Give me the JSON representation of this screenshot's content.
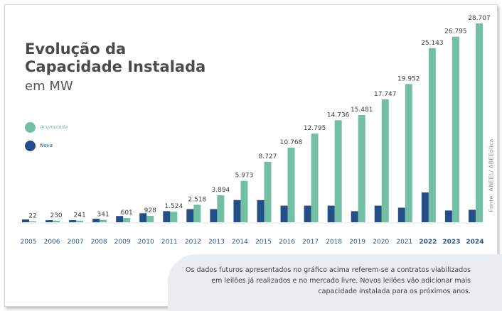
{
  "title_line1": "Evolução da",
  "title_line2": "Capacidade Instalada",
  "subtitle": "em MW",
  "source": "Fonte: ANEEL/ ABEEólica",
  "note": "Os dados futuros apresentados no gráfico acima referem-se a contratos viabilizados em leilões já realizados e no mercado livre. Novos leilões vão adicionar mais capacidade instalada para os próximos anos.",
  "colors": {
    "accumulated": "#72bfa4",
    "new": "#234e87",
    "year_label": "#2b5b8f",
    "value_label": "#3c3c3c"
  },
  "chart_data": {
    "type": "bar",
    "legend_position": "left",
    "categories": [
      "2005",
      "2006",
      "2007",
      "2008",
      "2009",
      "2010",
      "2011",
      "2012",
      "2013",
      "2014",
      "2015",
      "2016",
      "2017",
      "2018",
      "2019",
      "2020",
      "2021",
      "2022",
      "2023",
      "2024"
    ],
    "emphasized_categories": [
      "2022",
      "2023",
      "2024"
    ],
    "series": [
      {
        "name": "Nova",
        "values": [
          0.4,
          0.3,
          0.3,
          0.5,
          0.9,
          1.3,
          1.6,
          1.9,
          1.9,
          3.2,
          3.2,
          2.4,
          2.4,
          2.4,
          1.6,
          2.4,
          2.1,
          4.3,
          1.7,
          1.8
        ]
      },
      {
        "name": "Acumulada",
        "values": [
          22,
          230,
          241,
          341,
          601,
          928,
          1524,
          2518,
          3894,
          5973,
          8727,
          10768,
          12795,
          14736,
          15481,
          17747,
          19952,
          25143,
          26795,
          28707
        ],
        "labels": [
          "22",
          "230",
          "241",
          "341",
          "601",
          "928",
          "1.524",
          "2.518",
          "3.894",
          "5.973",
          "8.727",
          "10.768",
          "12.795",
          "14.736",
          "15.481",
          "17.747",
          "19.952",
          "25.143",
          "26.795",
          "28.707"
        ]
      }
    ],
    "ylim": [
      0,
      28707
    ]
  }
}
